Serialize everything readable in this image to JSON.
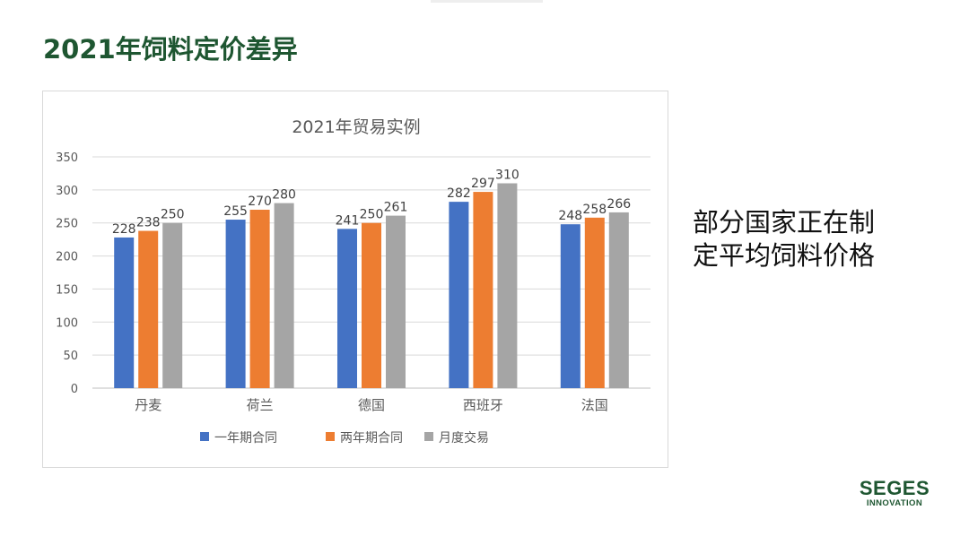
{
  "slide": {
    "title": "2021年饲料定价差异",
    "side_text_lines": [
      "部分国家正在制",
      "定平均饲料价格"
    ],
    "logo_main": "SEGES",
    "logo_sub": "INNOVATION"
  },
  "colors": {
    "title_green": "#1e5631",
    "series": [
      "#4472c4",
      "#ed7d31",
      "#a5a5a5"
    ]
  },
  "chart_data": {
    "type": "bar",
    "title": "2021年贸易实例",
    "categories": [
      "丹麦",
      "荷兰",
      "德国",
      "西班牙",
      "法国"
    ],
    "series": [
      {
        "name": "一年期合同",
        "values": [
          228,
          255,
          241,
          282,
          248
        ]
      },
      {
        "name": "两年期合同",
        "values": [
          238,
          270,
          250,
          297,
          258
        ]
      },
      {
        "name": "月度交易",
        "values": [
          250,
          280,
          261,
          310,
          266
        ]
      }
    ],
    "ylim": [
      0,
      350
    ],
    "yticks": [
      0,
      50,
      100,
      150,
      200,
      250,
      300,
      350
    ],
    "grid": true,
    "legend_position": "bottom",
    "data_labels": true
  }
}
